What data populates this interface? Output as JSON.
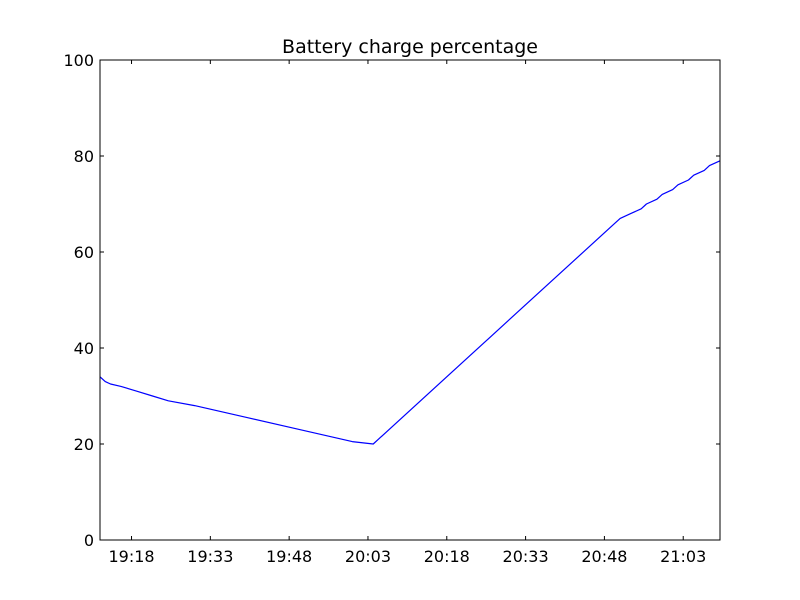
{
  "chart_data": {
    "type": "line",
    "title": "Battery charge percentage",
    "xlabel": "",
    "ylabel": "",
    "xlim": [
      "19:12",
      "21:10"
    ],
    "ylim": [
      0,
      100
    ],
    "grid": false,
    "x_ticks": [
      "19:18",
      "19:33",
      "19:48",
      "20:03",
      "20:18",
      "20:33",
      "20:48",
      "21:03"
    ],
    "y_ticks": [
      0,
      20,
      40,
      60,
      80,
      100
    ],
    "series_color": "#0000ff",
    "series": [
      {
        "x": [
          "19:12",
          "19:13",
          "19:14",
          "19:16",
          "19:19",
          "19:22",
          "19:25",
          "19:30",
          "19:40",
          "19:50",
          "20:00",
          "20:04",
          "20:05",
          "20:25",
          "20:26",
          "20:50",
          "20:51",
          "20:53",
          "20:55",
          "20:56",
          "20:58",
          "20:59",
          "21:01",
          "21:02",
          "21:04",
          "21:05",
          "21:07",
          "21:08",
          "21:10"
        ],
        "values": [
          34,
          33,
          32.5,
          32,
          31,
          30,
          29,
          28,
          25.5,
          23,
          20.5,
          20,
          21,
          41,
          42,
          66,
          67,
          68,
          69,
          70,
          71,
          72,
          73,
          74,
          75,
          76,
          77,
          78,
          79
        ]
      }
    ]
  }
}
